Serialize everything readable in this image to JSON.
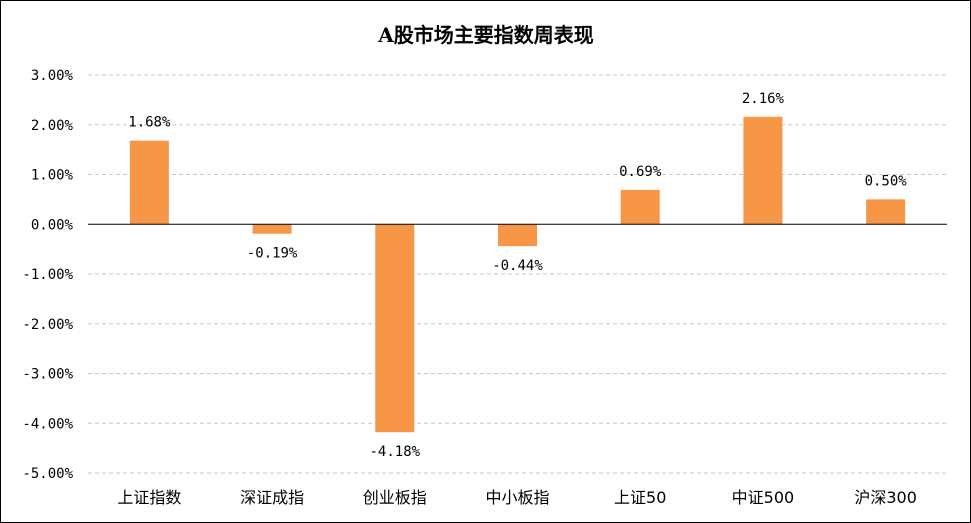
{
  "chart_data": {
    "type": "bar",
    "title": "A股市场主要指数周表现",
    "categories": [
      "上证指数",
      "深证成指",
      "创业板指",
      "中小板指",
      "上证50",
      "中证500",
      "沪深300"
    ],
    "values": [
      1.68,
      -0.19,
      -4.18,
      -0.44,
      0.69,
      2.16,
      0.5
    ],
    "data_labels": [
      "1.68%",
      "-0.19%",
      "-4.18%",
      "-0.44%",
      "0.69%",
      "2.16%",
      "0.50%"
    ],
    "ylim": [
      -5,
      3
    ],
    "yticks": [
      3,
      2,
      1,
      0,
      -1,
      -2,
      -3,
      -4,
      -5
    ],
    "ytick_labels": [
      "3.00%",
      "2.00%",
      "1.00%",
      "0.00%",
      "-1.00%",
      "-2.00%",
      "-3.00%",
      "-4.00%",
      "-5.00%"
    ],
    "xlabel": "",
    "ylabel": "",
    "grid": true,
    "legend": "none",
    "bar_color": "#F79646",
    "grid_color": "#C8C8C8",
    "axis_color": "#000000"
  }
}
